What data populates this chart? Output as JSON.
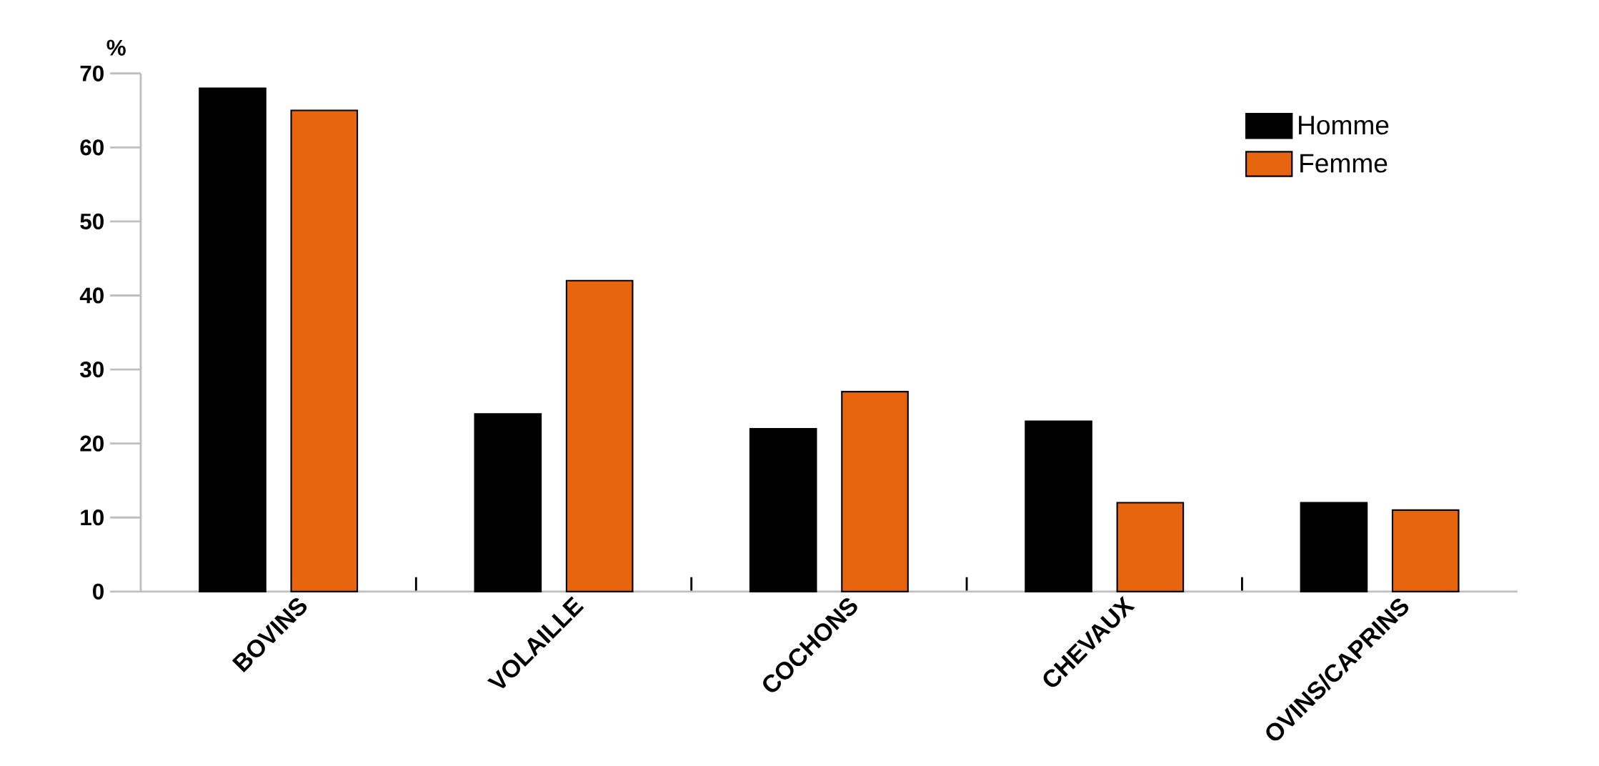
{
  "chart_data": {
    "type": "bar",
    "ylabel": "%",
    "categories": [
      "BOVINS",
      "VOLAILLE",
      "COCHONS",
      "CHEVAUX",
      "OVINS/CAPRINS"
    ],
    "series": [
      {
        "name": "Homme",
        "color": "#000000",
        "values": [
          68,
          24,
          22,
          23,
          12
        ]
      },
      {
        "name": "Femme",
        "color": "#e8650f",
        "values": [
          65,
          42,
          27,
          12,
          11
        ]
      }
    ],
    "ylim": [
      0,
      70
    ],
    "yticks": [
      0,
      10,
      20,
      30,
      40,
      50,
      60,
      70
    ],
    "legend": "top right"
  }
}
